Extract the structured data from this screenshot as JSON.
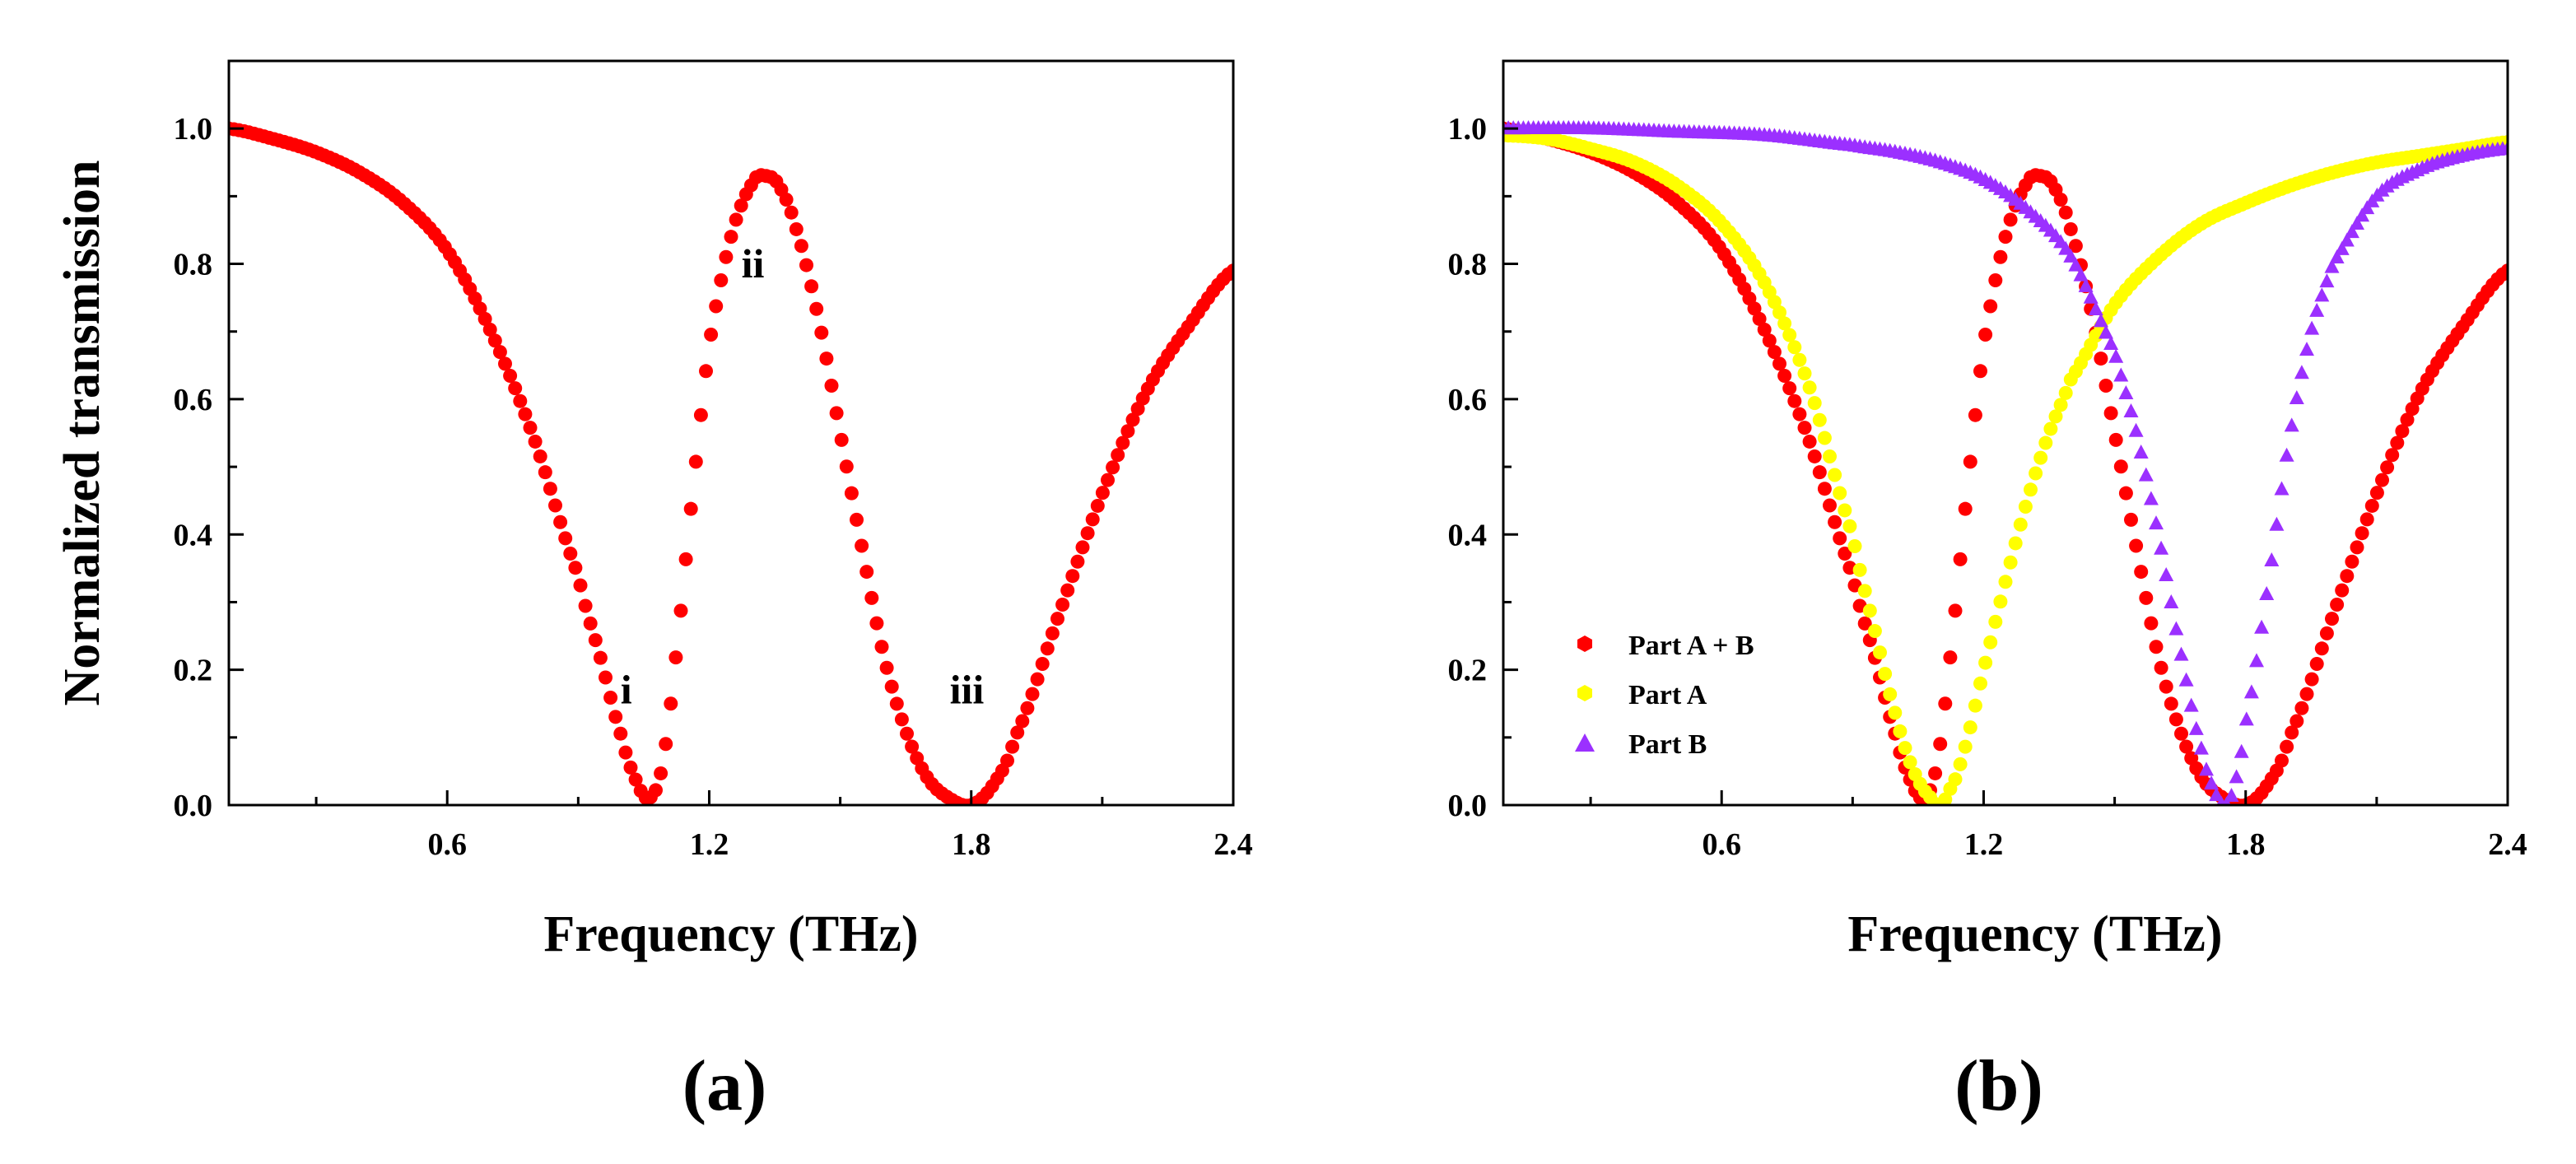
{
  "chart_data": [
    {
      "panel": "(a)",
      "type": "scatter",
      "title": "",
      "xlabel": "Frequency (THz)",
      "ylabel": "Normalized transmission",
      "xlim": [
        0.1,
        2.4
      ],
      "ylim": [
        0.0,
        1.1
      ],
      "xticks": [
        "0.6",
        "1.2",
        "1.8",
        "2.4"
      ],
      "xtick_values": [
        0.6,
        1.2,
        1.8,
        2.4
      ],
      "yticks": [
        "0.0",
        "0.2",
        "0.4",
        "0.6",
        "0.8",
        "1.0"
      ],
      "ytick_values": [
        0.0,
        0.2,
        0.4,
        0.6,
        0.8,
        1.0
      ],
      "annotations": [
        {
          "text": "i",
          "x": 1.01,
          "y": 0.15
        },
        {
          "text": "ii",
          "x": 1.3,
          "y": 0.78
        },
        {
          "text": "iii",
          "x": 1.79,
          "y": 0.15
        }
      ],
      "series": [
        {
          "name": "Part A + B",
          "color": "#ff0000",
          "marker": "circle",
          "x": [
            0.1,
            0.2,
            0.3,
            0.4,
            0.5,
            0.6,
            0.7,
            0.8,
            0.9,
            0.95,
            1.0,
            1.03,
            1.06,
            1.09,
            1.12,
            1.16,
            1.2,
            1.25,
            1.3,
            1.33,
            1.36,
            1.4,
            1.45,
            1.5,
            1.55,
            1.6,
            1.65,
            1.7,
            1.75,
            1.8,
            1.85,
            1.9,
            2.0,
            2.1,
            2.2,
            2.3,
            2.4
          ],
          "y": [
            1.0,
            0.985,
            0.965,
            0.935,
            0.89,
            0.82,
            0.7,
            0.54,
            0.34,
            0.22,
            0.1,
            0.04,
            0.01,
            0.05,
            0.2,
            0.45,
            0.68,
            0.84,
            0.92,
            0.93,
            0.915,
            0.85,
            0.72,
            0.55,
            0.38,
            0.22,
            0.11,
            0.04,
            0.01,
            0.0,
            0.03,
            0.1,
            0.28,
            0.46,
            0.61,
            0.71,
            0.79
          ]
        }
      ]
    },
    {
      "panel": "(b)",
      "type": "scatter",
      "title": "",
      "xlabel": "Frequency (THz)",
      "ylabel": "",
      "xlim": [
        0.1,
        2.4
      ],
      "ylim": [
        0.0,
        1.1
      ],
      "xticks": [
        "0.6",
        "1.2",
        "1.8",
        "2.4"
      ],
      "xtick_values": [
        0.6,
        1.2,
        1.8,
        2.4
      ],
      "yticks": [
        "0.0",
        "0.2",
        "0.4",
        "0.6",
        "0.8",
        "1.0"
      ],
      "ytick_values": [
        0.0,
        0.2,
        0.4,
        0.6,
        0.8,
        1.0
      ],
      "legend": "bottom-left",
      "series": [
        {
          "name": "Part A + B",
          "color": "#ff0000",
          "marker": "circle",
          "x": [
            0.1,
            0.2,
            0.3,
            0.4,
            0.5,
            0.6,
            0.7,
            0.8,
            0.9,
            0.95,
            1.0,
            1.03,
            1.06,
            1.09,
            1.12,
            1.16,
            1.2,
            1.25,
            1.3,
            1.33,
            1.36,
            1.4,
            1.45,
            1.5,
            1.55,
            1.6,
            1.65,
            1.7,
            1.75,
            1.8,
            1.85,
            1.9,
            2.0,
            2.1,
            2.2,
            2.3,
            2.4
          ],
          "y": [
            1.0,
            0.985,
            0.965,
            0.935,
            0.89,
            0.82,
            0.7,
            0.54,
            0.34,
            0.22,
            0.1,
            0.04,
            0.01,
            0.05,
            0.2,
            0.45,
            0.68,
            0.84,
            0.92,
            0.93,
            0.915,
            0.85,
            0.72,
            0.55,
            0.38,
            0.22,
            0.11,
            0.04,
            0.01,
            0.0,
            0.03,
            0.1,
            0.28,
            0.46,
            0.61,
            0.71,
            0.79
          ]
        },
        {
          "name": "Part A",
          "color": "#ffff00",
          "marker": "circle",
          "x": [
            0.1,
            0.2,
            0.3,
            0.4,
            0.5,
            0.6,
            0.7,
            0.8,
            0.9,
            0.95,
            1.0,
            1.04,
            1.08,
            1.1,
            1.12,
            1.15,
            1.2,
            1.25,
            1.3,
            1.35,
            1.4,
            1.5,
            1.6,
            1.7,
            1.8,
            1.9,
            2.0,
            2.1,
            2.2,
            2.3,
            2.4
          ],
          "y": [
            0.99,
            0.985,
            0.97,
            0.95,
            0.915,
            0.86,
            0.77,
            0.62,
            0.4,
            0.26,
            0.13,
            0.05,
            0.01,
            0.0,
            0.02,
            0.07,
            0.2,
            0.33,
            0.45,
            0.55,
            0.63,
            0.74,
            0.81,
            0.86,
            0.89,
            0.915,
            0.935,
            0.95,
            0.96,
            0.97,
            0.98
          ]
        },
        {
          "name": "Part B",
          "color": "#9b30ff",
          "marker": "triangle",
          "x": [
            0.1,
            0.3,
            0.5,
            0.7,
            0.9,
            1.0,
            1.1,
            1.2,
            1.3,
            1.4,
            1.5,
            1.55,
            1.6,
            1.65,
            1.7,
            1.73,
            1.75,
            1.77,
            1.8,
            1.85,
            1.9,
            1.95,
            2.0,
            2.1,
            2.2,
            2.3,
            2.4
          ],
          "y": [
            1.0,
            1.0,
            0.995,
            0.99,
            0.975,
            0.965,
            0.95,
            0.925,
            0.88,
            0.81,
            0.67,
            0.55,
            0.4,
            0.23,
            0.08,
            0.02,
            0.0,
            0.02,
            0.12,
            0.32,
            0.54,
            0.7,
            0.8,
            0.9,
            0.94,
            0.96,
            0.97
          ]
        }
      ]
    }
  ]
}
